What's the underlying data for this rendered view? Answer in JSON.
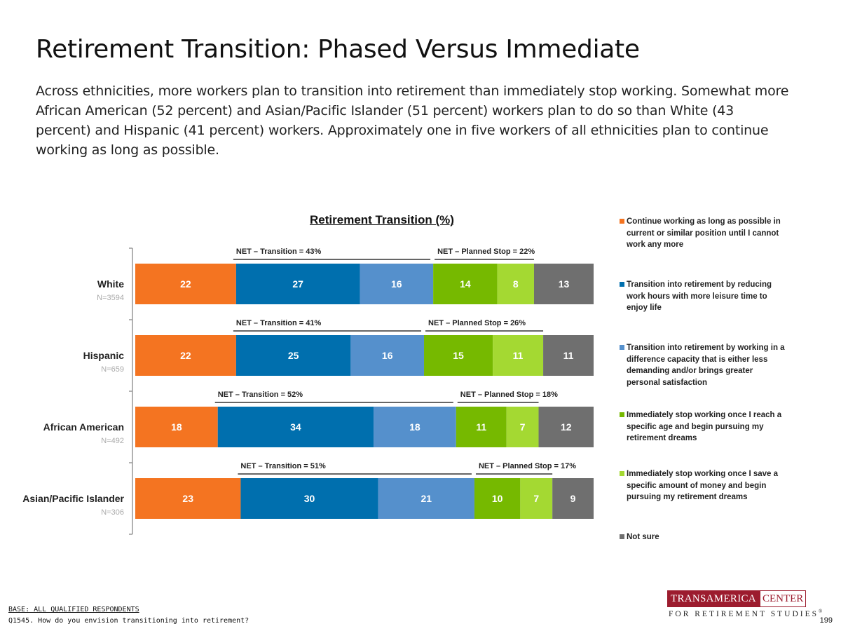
{
  "title": "Retirement Transition: Phased Versus Immediate",
  "subtitle": "Across ethnicities, more workers plan to transition into retirement than immediately stop working. Somewhat more African American (52 percent) and Asian/Pacific Islander (51 percent) workers plan to do so than White (43 percent) and Hispanic (41 percent) workers. Approximately one in five workers  of all ethnicities plan to continue working as long as possible.",
  "chart_data": {
    "type": "bar",
    "orientation": "horizontal",
    "stacked": true,
    "unit": "%",
    "title": "Retirement Transition (%)",
    "legend_position": "right",
    "categories": [
      "White",
      "Hispanic",
      "African American",
      "Asian/Pacific Islander"
    ],
    "sample_sizes": [
      "N=3594",
      "N=659",
      "N=492",
      "N=306"
    ],
    "series": [
      {
        "name": "Continue working as long as possible in current or similar position until I cannot work any more",
        "color": "#f47421",
        "values": [
          22,
          22,
          18,
          23
        ]
      },
      {
        "name": "Transition into retirement by reducing work hours with more leisure time to enjoy life",
        "color": "#006fae",
        "values": [
          27,
          25,
          34,
          30
        ]
      },
      {
        "name": "Transition into retirement by working in a difference capacity that is either less demanding and/or brings greater personal satisfaction",
        "color": "#5590cc",
        "values": [
          16,
          16,
          18,
          21
        ]
      },
      {
        "name": "Immediately stop working once I reach a specific age and begin pursuing my retirement dreams",
        "color": "#76b900",
        "values": [
          14,
          15,
          11,
          10
        ]
      },
      {
        "name": "Immediately stop working once I save a specific amount of money and begin pursuing my retirement dreams",
        "color": "#a4d932",
        "values": [
          8,
          11,
          7,
          7
        ]
      },
      {
        "name": "Not sure",
        "color": "#6f6f6f",
        "values": [
          13,
          11,
          12,
          9
        ]
      }
    ],
    "net_labels": [
      {
        "transition": "NET – Transition = 43%",
        "planned_stop": "NET – Planned Stop = 22%"
      },
      {
        "transition": "NET – Transition = 41%",
        "planned_stop": "NET – Planned Stop = 26%"
      },
      {
        "transition": "NET – Transition = 52%",
        "planned_stop": "NET – Planned Stop = 18%"
      },
      {
        "transition": "NET – Transition = 51%",
        "planned_stop": "NET – Planned Stop = 17%"
      }
    ]
  },
  "footer": {
    "base": "BASE: ALL QUALIFIED RESPONDENTS",
    "question": "Q1545. How do you envision transitioning into retirement?"
  },
  "logo": {
    "left": "TRANSAMERICA",
    "right": "CENTER",
    "bottom": "FOR RETIREMENT STUDIES",
    "mark": "®"
  },
  "page_number": "199"
}
